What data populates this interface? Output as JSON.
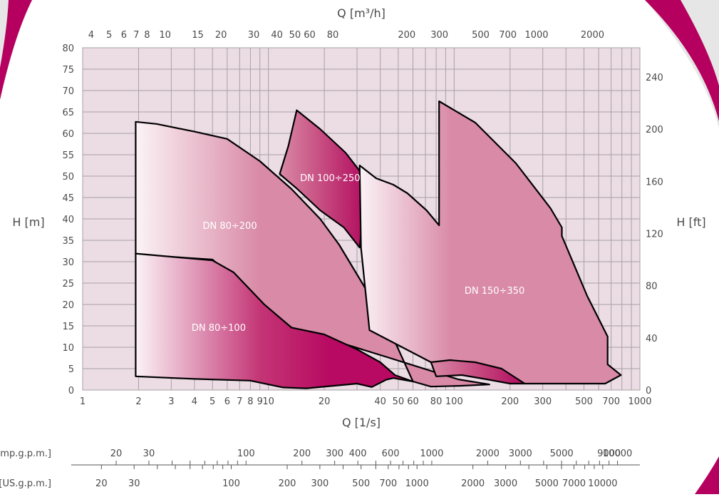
{
  "colors": {
    "plot_background": "#ecdde5",
    "grid": "#a8a0a6",
    "accent_ring": "#b5005f",
    "outer_ring": "#e6e6e6",
    "curve_stroke": "#000000",
    "region_pink": "#d98aa6",
    "region_magenta": "#b80a62",
    "region_white": "#fbf3f6"
  },
  "chart_data": {
    "type": "area",
    "title": "",
    "x_scale": "log",
    "x_range": [
      1,
      1000
    ],
    "xlabel_bottom": "Q [1/s]",
    "xlabel_top": "Q [m³/h]",
    "ylabel_left": "H [m]",
    "ylabel_right": "H [ft]",
    "y_range": [
      0,
      80
    ],
    "grid": true,
    "x_ticks_bottom": [
      {
        "v": 1,
        "t": "1"
      },
      {
        "v": 2,
        "t": "2"
      },
      {
        "v": 3,
        "t": "3"
      },
      {
        "v": 4,
        "t": "4"
      },
      {
        "v": 5,
        "t": "5"
      },
      {
        "v": 6,
        "t": "6"
      },
      {
        "v": 7,
        "t": "7"
      },
      {
        "v": 8,
        "t": "8"
      },
      {
        "v": 9,
        "t": "9"
      },
      {
        "v": 10,
        "t": "10"
      },
      {
        "v": 20,
        "t": "20"
      },
      {
        "v": 40,
        "t": "40"
      },
      {
        "v": 50,
        "t": "50"
      },
      {
        "v": 60,
        "t": "60"
      },
      {
        "v": 80,
        "t": "80"
      },
      {
        "v": 100,
        "t": "100"
      },
      {
        "v": 200,
        "t": "200"
      },
      {
        "v": 300,
        "t": "300"
      },
      {
        "v": 500,
        "t": "500"
      },
      {
        "v": 700,
        "t": "700"
      },
      {
        "v": 1000,
        "t": "1000"
      }
    ],
    "x_gridlines": [
      1,
      2,
      3,
      4,
      5,
      6,
      7,
      8,
      9,
      10,
      20,
      30,
      40,
      50,
      60,
      70,
      80,
      90,
      100,
      200,
      300,
      400,
      500,
      600,
      700,
      800,
      900,
      1000
    ],
    "x_ticks_top": [
      {
        "v": 4,
        "t": "4"
      },
      {
        "v": 5,
        "t": "5"
      },
      {
        "v": 6,
        "t": "6"
      },
      {
        "v": 7,
        "t": "7"
      },
      {
        "v": 8,
        "t": "8"
      },
      {
        "v": 10,
        "t": "10"
      },
      {
        "v": 15,
        "t": "15"
      },
      {
        "v": 20,
        "t": "20"
      },
      {
        "v": 30,
        "t": "30"
      },
      {
        "v": 40,
        "t": "40"
      },
      {
        "v": 50,
        "t": "50"
      },
      {
        "v": 60,
        "t": "60"
      },
      {
        "v": 80,
        "t": "80"
      },
      {
        "v": 200,
        "t": "200"
      },
      {
        "v": 300,
        "t": "300"
      },
      {
        "v": 500,
        "t": "500"
      },
      {
        "v": 700,
        "t": "700"
      },
      {
        "v": 1000,
        "t": "1000"
      },
      {
        "v": 2000,
        "t": "2000"
      }
    ],
    "y_ticks_left": [
      "0",
      "5",
      "10",
      "15",
      "20",
      "25",
      "30",
      "35",
      "40",
      "45",
      "50",
      "55",
      "60",
      "65",
      "70",
      "75",
      "80"
    ],
    "y_ticks_right": [
      {
        "v": 0,
        "t": "0"
      },
      {
        "v": 40,
        "t": "40"
      },
      {
        "v": 80,
        "t": "80"
      },
      {
        "v": 120,
        "t": "120"
      },
      {
        "v": 160,
        "t": "160"
      },
      {
        "v": 200,
        "t": "200"
      },
      {
        "v": 240,
        "t": "240"
      }
    ],
    "gpm_scales": [
      {
        "label": "[Imp.g.p.m.]",
        "ticks": [
          {
            "v": 20,
            "t": "20"
          },
          {
            "v": 30,
            "t": "30"
          },
          {
            "v": 100,
            "t": "100"
          },
          {
            "v": 200,
            "t": "200"
          },
          {
            "v": 300,
            "t": "300"
          },
          {
            "v": 400,
            "t": "400"
          },
          {
            "v": 600,
            "t": "600"
          },
          {
            "v": 1000,
            "t": "1000"
          },
          {
            "v": 2000,
            "t": "2000"
          },
          {
            "v": 3000,
            "t": "3000"
          },
          {
            "v": 5000,
            "t": "5000"
          },
          {
            "v": 9000,
            "t": "9000"
          },
          {
            "v": 10000,
            "t": "10000"
          }
        ]
      },
      {
        "label": "[US.g.p.m.]",
        "ticks": [
          {
            "v": 20,
            "t": "20"
          },
          {
            "v": 30,
            "t": "30"
          },
          {
            "v": 100,
            "t": "100"
          },
          {
            "v": 200,
            "t": "200"
          },
          {
            "v": 300,
            "t": "300"
          },
          {
            "v": 500,
            "t": "500"
          },
          {
            "v": 700,
            "t": "700"
          },
          {
            "v": 1000,
            "t": "1000"
          },
          {
            "v": 2000,
            "t": "2000"
          },
          {
            "v": 3000,
            "t": "3000"
          },
          {
            "v": 5000,
            "t": "5000"
          },
          {
            "v": 7000,
            "t": "7000"
          },
          {
            "v": 10000,
            "t": "10000"
          }
        ]
      }
    ],
    "series": [
      {
        "name": "DN 80÷200",
        "gradient": "gradWhitePink",
        "label_pos": [
          6.2,
          38.5
        ],
        "points": [
          [
            1.93,
            62.7
          ],
          [
            2.5,
            62.2
          ],
          [
            4.0,
            60.4
          ],
          [
            6.0,
            58.7
          ],
          [
            9.0,
            53.5
          ],
          [
            13.3,
            47.0
          ],
          [
            19.0,
            40.0
          ],
          [
            24.0,
            34.0
          ],
          [
            32.0,
            25.0
          ],
          [
            45.0,
            14.0
          ],
          [
            60.0,
            2.0
          ],
          [
            75.0,
            0.8
          ],
          [
            110.0,
            1.0
          ],
          [
            155.0,
            1.3
          ],
          [
            105.0,
            2.5
          ],
          [
            45.0,
            7.5
          ],
          [
            13.3,
            14.6
          ],
          [
            9.5,
            19.8
          ],
          [
            7.0,
            25.0
          ],
          [
            5.0,
            30.5
          ],
          [
            1.93,
            31.7
          ]
        ]
      },
      {
        "name": "DN 100÷250",
        "gradient": "gradMagenta",
        "label_pos": [
          21.5,
          49.7
        ],
        "points": [
          [
            11.5,
            50.5
          ],
          [
            12.8,
            57.0
          ],
          [
            14.2,
            65.4
          ],
          [
            19.0,
            61.0
          ],
          [
            26.0,
            55.5
          ],
          [
            34.0,
            49.0
          ],
          [
            31.0,
            33.3
          ],
          [
            25.5,
            38.0
          ],
          [
            19.0,
            42.0
          ],
          [
            14.3,
            47.0
          ]
        ]
      },
      {
        "name": "DN 150÷350",
        "gradient": "gradWhitePink",
        "label_pos": [
          165.0,
          23.3
        ],
        "points": [
          [
            31.0,
            52.5
          ],
          [
            38.0,
            49.5
          ],
          [
            47.0,
            48.0
          ],
          [
            56.0,
            46.0
          ],
          [
            71.0,
            42.0
          ],
          [
            83.0,
            38.5
          ],
          [
            83.0,
            67.5
          ],
          [
            130.0,
            62.5
          ],
          [
            215.0,
            53.0
          ],
          [
            330.0,
            42.5
          ],
          [
            380.0,
            38.0
          ],
          [
            380.0,
            36.0
          ],
          [
            520.0,
            22.0
          ],
          [
            670.0,
            12.5
          ],
          [
            670.0,
            6.0
          ],
          [
            790.0,
            3.5
          ],
          [
            650.0,
            1.5
          ],
          [
            240.0,
            1.5
          ],
          [
            150.0,
            4.0
          ],
          [
            100.0,
            5.5
          ],
          [
            75.0,
            6.5
          ],
          [
            35.0,
            14.0
          ],
          [
            31.5,
            33.3
          ]
        ]
      },
      {
        "name": "DN 80÷100",
        "gradient": "gradWhiteMagenta",
        "label_pos": [
          5.4,
          14.7
        ],
        "points": [
          [
            1.93,
            31.9
          ],
          [
            5.0,
            30.3
          ],
          [
            6.5,
            27.5
          ],
          [
            9.5,
            20.0
          ],
          [
            13.3,
            14.6
          ],
          [
            20.0,
            13.0
          ],
          [
            30.0,
            9.5
          ],
          [
            40.0,
            6.5
          ],
          [
            48.0,
            3.5
          ],
          [
            60.0,
            2.0
          ],
          [
            47.0,
            2.8
          ],
          [
            43.0,
            2.4
          ],
          [
            36.0,
            0.7
          ],
          [
            30.0,
            1.5
          ],
          [
            16.0,
            0.4
          ],
          [
            12.0,
            0.6
          ],
          [
            8.0,
            2.2
          ],
          [
            4.0,
            2.6
          ],
          [
            1.93,
            3.2
          ]
        ]
      },
      {
        "name": "",
        "gradient": "gradMagenta",
        "label_pos": null,
        "points": [
          [
            75.0,
            6.5
          ],
          [
            95.0,
            7.0
          ],
          [
            130.0,
            6.5
          ],
          [
            180.0,
            5.0
          ],
          [
            240.0,
            1.5
          ],
          [
            200.0,
            1.5
          ],
          [
            150.0,
            2.5
          ],
          [
            110.0,
            3.5
          ],
          [
            80.0,
            3.2
          ]
        ]
      }
    ]
  }
}
